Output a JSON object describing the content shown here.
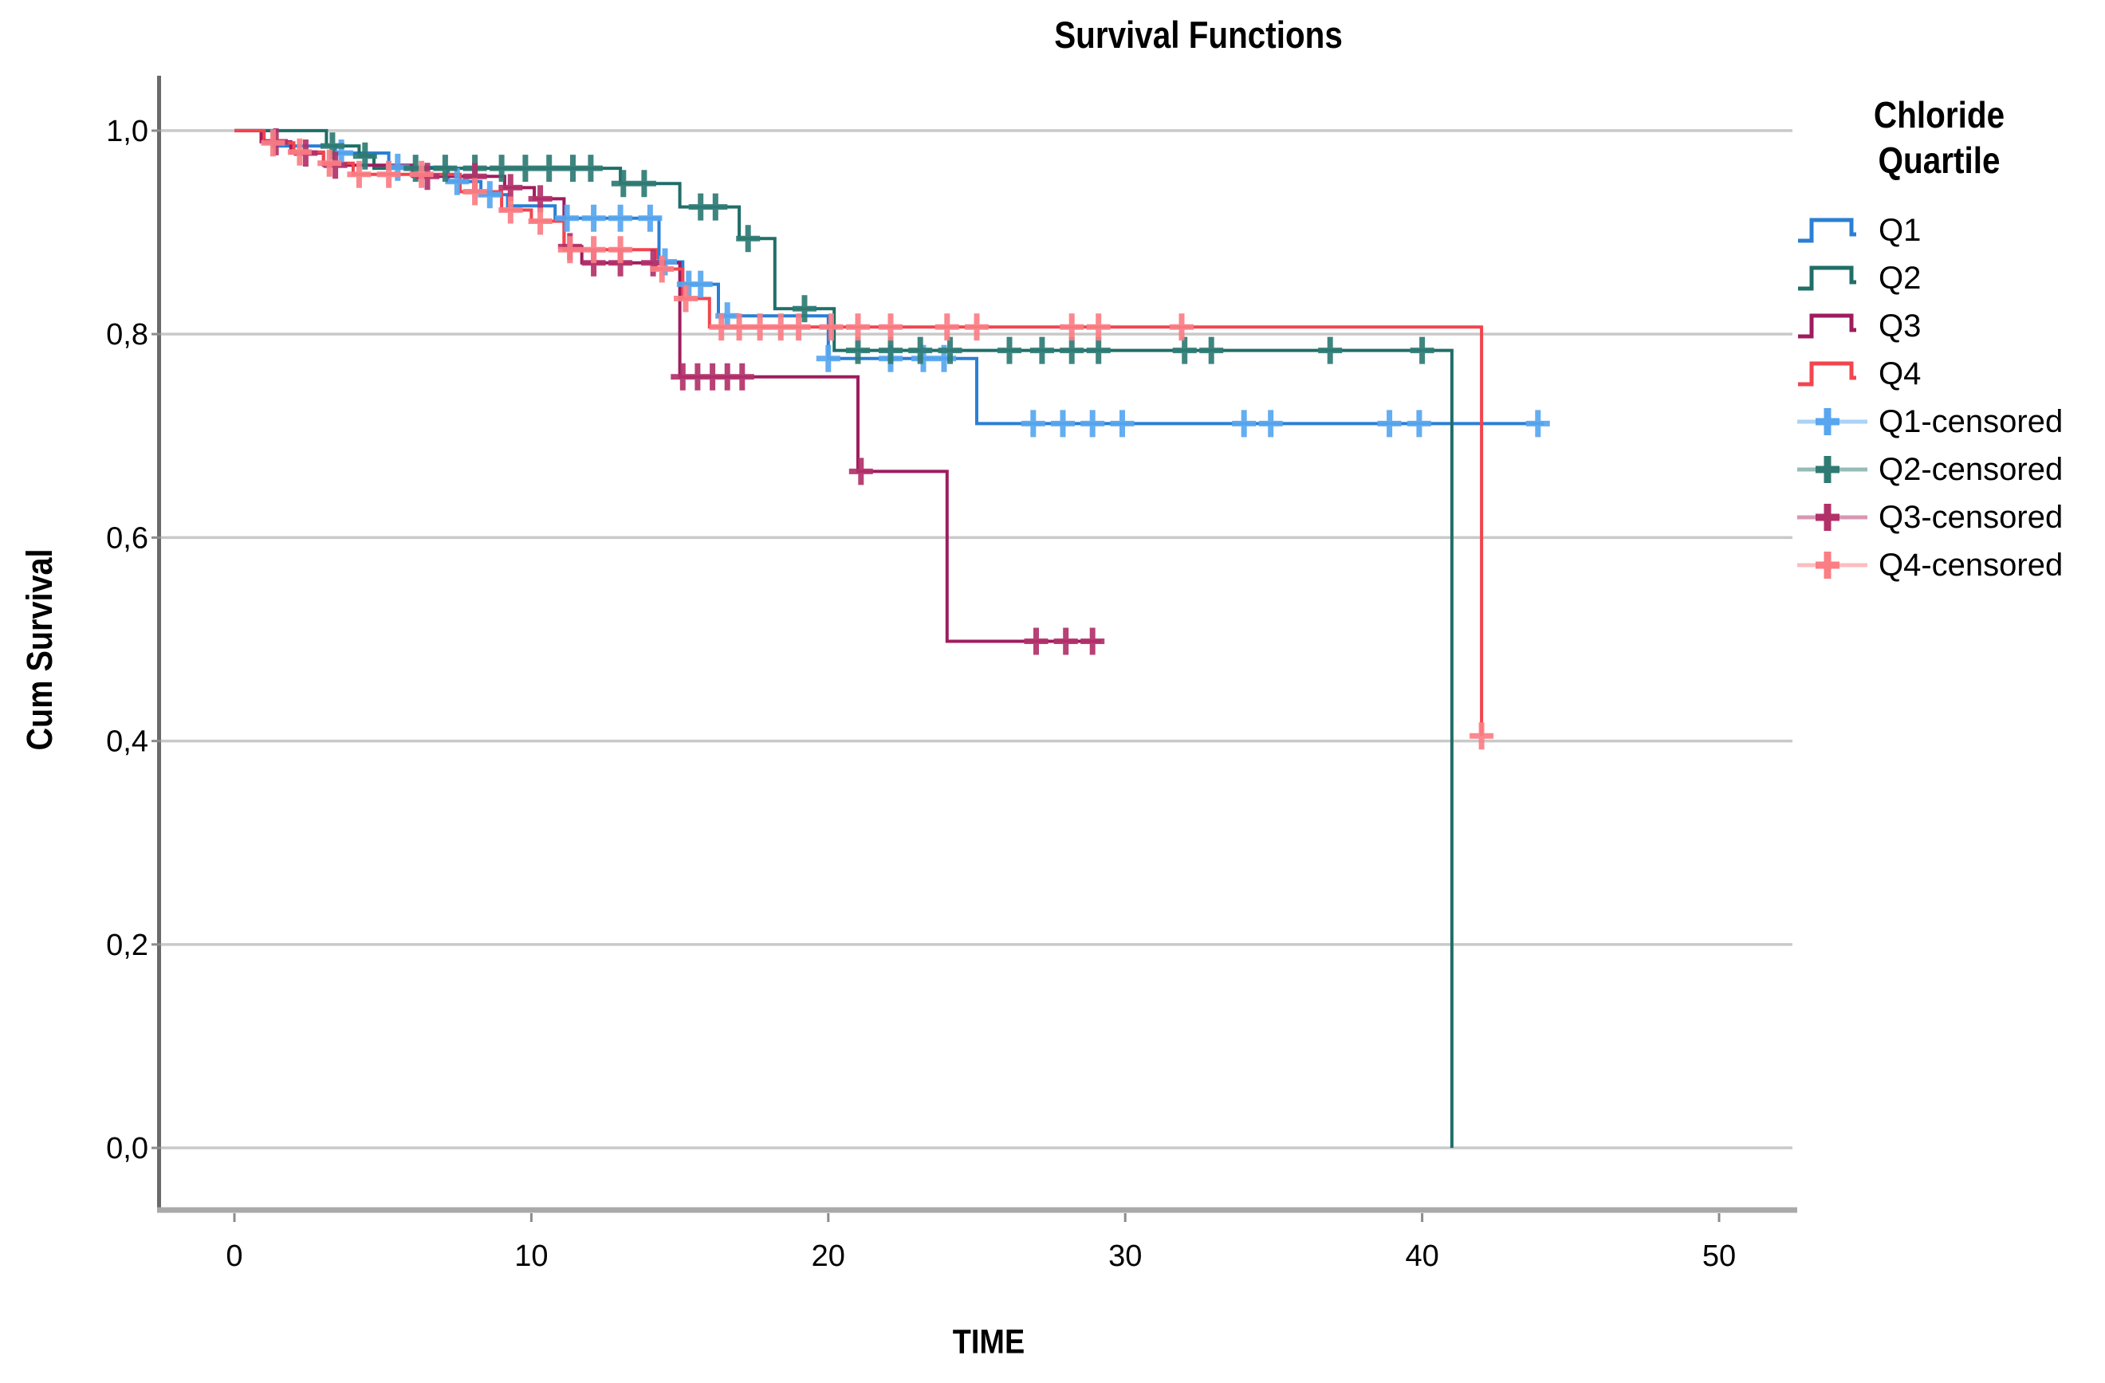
{
  "title": "Survival Functions",
  "axes": {
    "x_label": "TIME",
    "y_label": "Cum Survival",
    "x_ticks": [
      0,
      10,
      20,
      30,
      40,
      50
    ],
    "x_tick_labels": [
      "0",
      "10",
      "20",
      "30",
      "40",
      "50"
    ],
    "y_ticks": [
      0.0,
      0.2,
      0.4,
      0.6,
      0.8,
      1.0
    ],
    "y_tick_labels": [
      "0,0",
      "0,2",
      "0,4",
      "0,6",
      "0,8",
      "1,0"
    ],
    "gridline_color": "#c9c9c9",
    "left_spine_color": "#6a6a6a",
    "bottom_spine_color": "#a9a9a9"
  },
  "legend": {
    "title_line1": "Chloride",
    "title_line2": "Quartile",
    "items": [
      {
        "label": "Q1",
        "swatch": "step",
        "series": "Q1"
      },
      {
        "label": "Q2",
        "swatch": "step",
        "series": "Q2"
      },
      {
        "label": "Q3",
        "swatch": "step",
        "series": "Q3"
      },
      {
        "label": "Q4",
        "swatch": "step",
        "series": "Q4"
      },
      {
        "label": "Q1-censored",
        "swatch": "censor",
        "series": "Q1"
      },
      {
        "label": "Q2-censored",
        "swatch": "censor",
        "series": "Q2"
      },
      {
        "label": "Q3-censored",
        "swatch": "censor",
        "series": "Q3"
      },
      {
        "label": "Q4-censored",
        "swatch": "censor",
        "series": "Q4"
      }
    ]
  },
  "chart_data": {
    "type": "line",
    "subtype": "kaplan-meier-step",
    "title": "Survival Functions",
    "xlabel": "TIME",
    "ylabel": "Cum Survival",
    "xlim": [
      -2.47,
      52.47
    ],
    "ylim": [
      -0.0603,
      1.054
    ],
    "grid": "horizontal-only",
    "legend_position": "right",
    "series": [
      {
        "name": "Q1",
        "color": "#2b7fd4",
        "censor_color": "#57a6ef",
        "steps": [
          [
            0,
            1.0
          ],
          [
            1.3,
            0.985
          ],
          [
            3.4,
            0.978
          ],
          [
            5.2,
            0.964
          ],
          [
            7.2,
            0.95
          ],
          [
            8.3,
            0.937
          ],
          [
            9.2,
            0.926
          ],
          [
            10.8,
            0.914
          ],
          [
            14.3,
            0.871
          ],
          [
            15.1,
            0.849
          ],
          [
            16.3,
            0.818
          ],
          [
            20.0,
            0.776
          ],
          [
            25.0,
            0.712
          ]
        ],
        "end_t": 44.1,
        "censors": [
          [
            3.6,
            0.978
          ],
          [
            5.5,
            0.964
          ],
          [
            7.5,
            0.95
          ],
          [
            8.6,
            0.937
          ],
          [
            11.2,
            0.914
          ],
          [
            12.1,
            0.914
          ],
          [
            13.0,
            0.914
          ],
          [
            14.0,
            0.914
          ],
          [
            14.5,
            0.871
          ],
          [
            15.3,
            0.849
          ],
          [
            15.7,
            0.849
          ],
          [
            16.6,
            0.818
          ],
          [
            20.0,
            0.776
          ],
          [
            22.1,
            0.776
          ],
          [
            23.2,
            0.776
          ],
          [
            23.9,
            0.776
          ],
          [
            26.9,
            0.712
          ],
          [
            27.9,
            0.712
          ],
          [
            28.9,
            0.712
          ],
          [
            29.9,
            0.712
          ],
          [
            34.0,
            0.712
          ],
          [
            34.9,
            0.712
          ],
          [
            38.9,
            0.712
          ],
          [
            39.9,
            0.712
          ],
          [
            43.9,
            0.712
          ]
        ]
      },
      {
        "name": "Q2",
        "color": "#206e68",
        "censor_color": "#2f7b74",
        "steps": [
          [
            0,
            1.0
          ],
          [
            3.1,
            0.985
          ],
          [
            4.2,
            0.975
          ],
          [
            4.7,
            0.963
          ],
          [
            13.0,
            0.948
          ],
          [
            15.0,
            0.925
          ],
          [
            17.0,
            0.894
          ],
          [
            18.2,
            0.825
          ],
          [
            20.2,
            0.784
          ],
          [
            41.0,
            0.0
          ]
        ],
        "end_t": 41.0,
        "censors": [
          [
            3.3,
            0.985
          ],
          [
            4.4,
            0.975
          ],
          [
            6.1,
            0.963
          ],
          [
            7.1,
            0.963
          ],
          [
            8.1,
            0.963
          ],
          [
            9.0,
            0.963
          ],
          [
            9.8,
            0.963
          ],
          [
            10.6,
            0.963
          ],
          [
            11.4,
            0.963
          ],
          [
            12.0,
            0.963
          ],
          [
            13.1,
            0.948
          ],
          [
            13.8,
            0.948
          ],
          [
            15.7,
            0.925
          ],
          [
            16.2,
            0.925
          ],
          [
            17.3,
            0.894
          ],
          [
            19.2,
            0.825
          ],
          [
            21.0,
            0.784
          ],
          [
            22.1,
            0.784
          ],
          [
            23.1,
            0.784
          ],
          [
            24.1,
            0.784
          ],
          [
            26.1,
            0.784
          ],
          [
            27.2,
            0.784
          ],
          [
            28.2,
            0.784
          ],
          [
            29.1,
            0.784
          ],
          [
            32.0,
            0.784
          ],
          [
            32.9,
            0.784
          ],
          [
            36.9,
            0.784
          ],
          [
            40.0,
            0.784
          ]
        ]
      },
      {
        "name": "Q3",
        "color": "#9e1c5e",
        "censor_color": "#b23169",
        "steps": [
          [
            0,
            1.0
          ],
          [
            0.9,
            0.989
          ],
          [
            1.9,
            0.978
          ],
          [
            3.0,
            0.966
          ],
          [
            6.0,
            0.955
          ],
          [
            9.1,
            0.944
          ],
          [
            10.1,
            0.933
          ],
          [
            11.1,
            0.886
          ],
          [
            11.7,
            0.87
          ],
          [
            15.0,
            0.758
          ],
          [
            21.0,
            0.665
          ],
          [
            24.0,
            0.498
          ]
        ],
        "end_t": 29.2,
        "censors": [
          [
            1.4,
            0.989
          ],
          [
            2.4,
            0.978
          ],
          [
            3.4,
            0.966
          ],
          [
            6.5,
            0.955
          ],
          [
            8.1,
            0.955
          ],
          [
            9.3,
            0.944
          ],
          [
            10.3,
            0.933
          ],
          [
            11.3,
            0.886
          ],
          [
            12.1,
            0.87
          ],
          [
            13.0,
            0.87
          ],
          [
            14.1,
            0.87
          ],
          [
            15.1,
            0.758
          ],
          [
            15.6,
            0.758
          ],
          [
            16.1,
            0.758
          ],
          [
            16.6,
            0.758
          ],
          [
            17.1,
            0.758
          ],
          [
            21.1,
            0.665
          ],
          [
            27.0,
            0.498
          ],
          [
            28.0,
            0.498
          ],
          [
            28.9,
            0.498
          ]
        ]
      },
      {
        "name": "Q4",
        "color": "#f2454e",
        "censor_color": "#fa7e84",
        "steps": [
          [
            0,
            1.0
          ],
          [
            1.0,
            0.988
          ],
          [
            2.0,
            0.979
          ],
          [
            3.0,
            0.968
          ],
          [
            4.0,
            0.957
          ],
          [
            7.6,
            0.94
          ],
          [
            9.0,
            0.922
          ],
          [
            10.0,
            0.911
          ],
          [
            11.1,
            0.883
          ],
          [
            14.2,
            0.864
          ],
          [
            15.1,
            0.835
          ],
          [
            16.0,
            0.807
          ],
          [
            42.0,
            0.405
          ]
        ],
        "end_t": 42.0,
        "censors": [
          [
            1.3,
            0.988
          ],
          [
            2.2,
            0.979
          ],
          [
            3.2,
            0.968
          ],
          [
            4.2,
            0.957
          ],
          [
            5.2,
            0.957
          ],
          [
            6.3,
            0.957
          ],
          [
            8.1,
            0.94
          ],
          [
            9.3,
            0.922
          ],
          [
            10.3,
            0.911
          ],
          [
            11.3,
            0.883
          ],
          [
            12.1,
            0.883
          ],
          [
            13.0,
            0.883
          ],
          [
            14.4,
            0.864
          ],
          [
            15.2,
            0.835
          ],
          [
            16.4,
            0.807
          ],
          [
            17.0,
            0.807
          ],
          [
            17.7,
            0.807
          ],
          [
            18.4,
            0.807
          ],
          [
            19.0,
            0.807
          ],
          [
            20.1,
            0.807
          ],
          [
            21.0,
            0.807
          ],
          [
            22.1,
            0.807
          ],
          [
            24.0,
            0.807
          ],
          [
            25.0,
            0.807
          ],
          [
            28.2,
            0.807
          ],
          [
            29.1,
            0.807
          ],
          [
            31.9,
            0.807
          ],
          [
            42.0,
            0.405
          ]
        ]
      }
    ]
  }
}
